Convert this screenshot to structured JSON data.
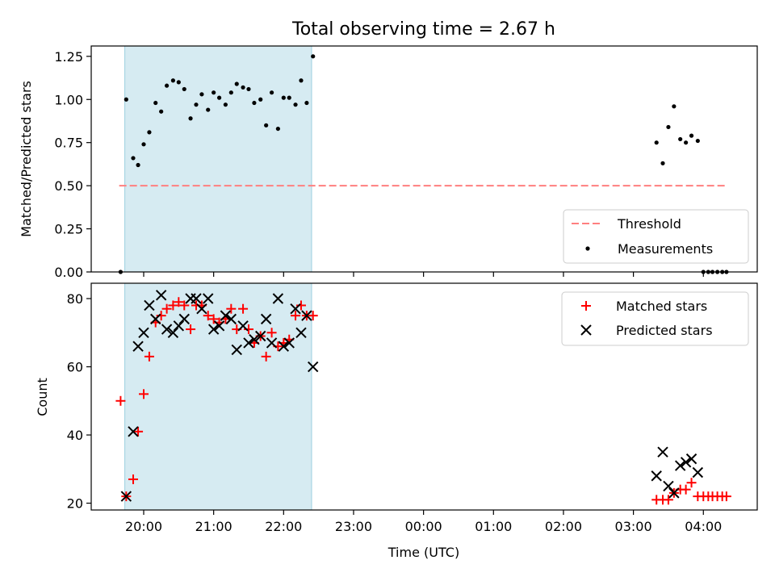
{
  "chart_data": [
    {
      "type": "scatter",
      "title": "Total observing time = 2.67 h",
      "ylabel": "Matched/Predicted stars",
      "xlabel": "",
      "x_unit": "hours since 00:00 UTC",
      "xlim": [
        -4.75,
        4.77
      ],
      "ylim": [
        0.0,
        1.31
      ],
      "yticks": [
        0.0,
        0.25,
        0.5,
        0.75,
        1.0,
        1.25
      ],
      "ytick_labels": [
        "0.00",
        "0.25",
        "0.50",
        "0.75",
        "1.00",
        "1.25"
      ],
      "shaded_interval": [
        -4.27,
        -1.6
      ],
      "shaded_color": "#add8e6",
      "threshold": {
        "name": "Threshold",
        "value": 0.5,
        "x_range": [
          -4.35,
          4.33
        ],
        "color": "#ff7f7f",
        "style": "dashed"
      },
      "legend": {
        "position": "lower-right",
        "entries": [
          "Threshold",
          "Measurements"
        ]
      },
      "series": [
        {
          "name": "Measurements",
          "color": "#000000",
          "marker": "dot",
          "points": [
            [
              -4.33,
              0.0
            ],
            [
              -4.25,
              1.0
            ],
            [
              -4.15,
              0.66
            ],
            [
              -4.08,
              0.62
            ],
            [
              -4.0,
              0.74
            ],
            [
              -3.92,
              0.81
            ],
            [
              -3.83,
              0.98
            ],
            [
              -3.75,
              0.93
            ],
            [
              -3.67,
              1.08
            ],
            [
              -3.58,
              1.11
            ],
            [
              -3.5,
              1.1
            ],
            [
              -3.42,
              1.06
            ],
            [
              -3.33,
              0.89
            ],
            [
              -3.25,
              0.97
            ],
            [
              -3.17,
              1.03
            ],
            [
              -3.08,
              0.94
            ],
            [
              -3.0,
              1.04
            ],
            [
              -2.92,
              1.01
            ],
            [
              -2.83,
              0.97
            ],
            [
              -2.75,
              1.04
            ],
            [
              -2.67,
              1.09
            ],
            [
              -2.58,
              1.07
            ],
            [
              -2.5,
              1.06
            ],
            [
              -2.42,
              0.98
            ],
            [
              -2.33,
              1.0
            ],
            [
              -2.25,
              0.85
            ],
            [
              -2.17,
              1.04
            ],
            [
              -2.08,
              0.83
            ],
            [
              -2.0,
              1.01
            ],
            [
              -1.92,
              1.01
            ],
            [
              -1.83,
              0.97
            ],
            [
              -1.75,
              1.11
            ],
            [
              -1.67,
              0.98
            ],
            [
              -1.58,
              1.25
            ],
            [
              3.33,
              0.75
            ],
            [
              3.42,
              0.63
            ],
            [
              3.5,
              0.84
            ],
            [
              3.58,
              0.96
            ],
            [
              3.67,
              0.77
            ],
            [
              3.75,
              0.75
            ],
            [
              3.83,
              0.79
            ],
            [
              3.92,
              0.76
            ],
            [
              4.0,
              0.0
            ],
            [
              4.07,
              0.0
            ],
            [
              4.13,
              0.0
            ],
            [
              4.2,
              0.0
            ],
            [
              4.27,
              0.0
            ],
            [
              4.33,
              0.0
            ]
          ]
        }
      ]
    },
    {
      "type": "scatter",
      "title": "",
      "ylabel": "Count",
      "xlabel": "Time (UTC)",
      "x_unit": "hours since 00:00 UTC",
      "xlim": [
        -4.75,
        4.77
      ],
      "ylim": [
        18.0,
        84.5
      ],
      "yticks": [
        20,
        40,
        60,
        80
      ],
      "ytick_labels": [
        "20",
        "40",
        "60",
        "80"
      ],
      "xticks": [
        -4,
        -3,
        -2,
        -1,
        0,
        1,
        2,
        3,
        4
      ],
      "xtick_labels": [
        "20:00",
        "21:00",
        "22:00",
        "23:00",
        "00:00",
        "01:00",
        "02:00",
        "03:00",
        "04:00"
      ],
      "shaded_interval": [
        -4.27,
        -1.6
      ],
      "shaded_color": "#add8e6",
      "legend": {
        "position": "top-right",
        "entries": [
          "Matched stars",
          "Predicted stars"
        ]
      },
      "series": [
        {
          "name": "Matched stars",
          "color": "#ff0000",
          "marker": "plus",
          "points": [
            [
              -4.33,
              50
            ],
            [
              -4.25,
              22
            ],
            [
              -4.15,
              27
            ],
            [
              -4.08,
              41
            ],
            [
              -4.0,
              52
            ],
            [
              -3.92,
              63
            ],
            [
              -3.83,
              73
            ],
            [
              -3.75,
              75
            ],
            [
              -3.67,
              77
            ],
            [
              -3.58,
              78
            ],
            [
              -3.5,
              79
            ],
            [
              -3.42,
              78
            ],
            [
              -3.33,
              71
            ],
            [
              -3.25,
              78
            ],
            [
              -3.17,
              78
            ],
            [
              -3.08,
              75
            ],
            [
              -3.0,
              74
            ],
            [
              -2.92,
              73
            ],
            [
              -2.83,
              74
            ],
            [
              -2.75,
              77
            ],
            [
              -2.67,
              71
            ],
            [
              -2.58,
              77
            ],
            [
              -2.5,
              71
            ],
            [
              -2.42,
              67
            ],
            [
              -2.33,
              69
            ],
            [
              -2.25,
              63
            ],
            [
              -2.17,
              70
            ],
            [
              -2.08,
              66
            ],
            [
              -2.0,
              67
            ],
            [
              -1.92,
              68
            ],
            [
              -1.83,
              75
            ],
            [
              -1.75,
              78
            ],
            [
              -1.67,
              75
            ],
            [
              -1.58,
              75
            ],
            [
              3.33,
              21
            ],
            [
              3.42,
              21
            ],
            [
              3.5,
              21
            ],
            [
              3.58,
              23
            ],
            [
              3.67,
              24
            ],
            [
              3.75,
              24
            ],
            [
              3.83,
              26
            ],
            [
              3.92,
              22
            ],
            [
              4.0,
              22
            ],
            [
              4.07,
              22
            ],
            [
              4.13,
              22
            ],
            [
              4.2,
              22
            ],
            [
              4.27,
              22
            ],
            [
              4.33,
              22
            ]
          ]
        },
        {
          "name": "Predicted stars",
          "color": "#000000",
          "marker": "x",
          "points": [
            [
              -4.25,
              22
            ],
            [
              -4.15,
              41
            ],
            [
              -4.08,
              66
            ],
            [
              -4.0,
              70
            ],
            [
              -3.92,
              78
            ],
            [
              -3.83,
              74
            ],
            [
              -3.75,
              81
            ],
            [
              -3.67,
              71
            ],
            [
              -3.58,
              70
            ],
            [
              -3.5,
              72
            ],
            [
              -3.42,
              74
            ],
            [
              -3.33,
              80
            ],
            [
              -3.25,
              80
            ],
            [
              -3.17,
              77
            ],
            [
              -3.08,
              80
            ],
            [
              -3.0,
              71
            ],
            [
              -2.92,
              72
            ],
            [
              -2.83,
              75
            ],
            [
              -2.75,
              74
            ],
            [
              -2.67,
              65
            ],
            [
              -2.58,
              72
            ],
            [
              -2.5,
              67
            ],
            [
              -2.42,
              68
            ],
            [
              -2.33,
              69
            ],
            [
              -2.25,
              74
            ],
            [
              -2.17,
              67
            ],
            [
              -2.08,
              80
            ],
            [
              -2.0,
              66
            ],
            [
              -1.92,
              67
            ],
            [
              -1.83,
              77
            ],
            [
              -1.75,
              70
            ],
            [
              -1.67,
              75
            ],
            [
              -1.58,
              60
            ],
            [
              3.33,
              28
            ],
            [
              3.42,
              35
            ],
            [
              3.5,
              25
            ],
            [
              3.58,
              23
            ],
            [
              3.67,
              31
            ],
            [
              3.75,
              32
            ],
            [
              3.83,
              33
            ],
            [
              3.92,
              29
            ]
          ]
        }
      ]
    }
  ]
}
